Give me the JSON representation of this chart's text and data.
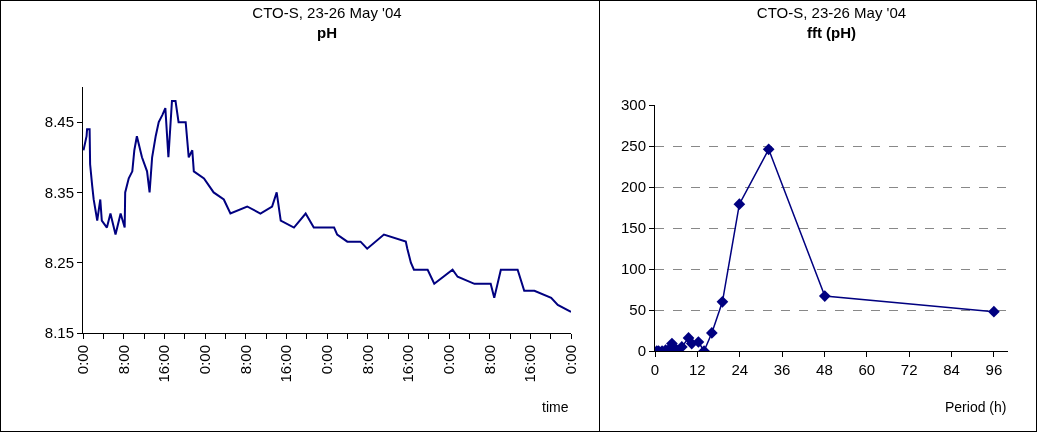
{
  "chart_data": [
    {
      "type": "line",
      "title": "CTO-S, 23-26 May '04",
      "subtitle": "pH",
      "xlabel": "time",
      "marker": "none",
      "line_style": "solid",
      "grid": false,
      "xlim": [
        "2004-05-23T00:00",
        "2004-05-27T00:00"
      ],
      "xticks": [
        {
          "value": "2004-05-23T00:00",
          "label": "0:00"
        },
        {
          "value": "2004-05-23T04:00",
          "label": null
        },
        {
          "value": "2004-05-23T08:00",
          "label": "8:00"
        },
        {
          "value": "2004-05-23T12:00",
          "label": null
        },
        {
          "value": "2004-05-23T16:00",
          "label": "16:00"
        },
        {
          "value": "2004-05-23T20:00",
          "label": null
        },
        {
          "value": "2004-05-24T00:00",
          "label": "0:00"
        },
        {
          "value": "2004-05-24T04:00",
          "label": null
        },
        {
          "value": "2004-05-24T08:00",
          "label": "8:00"
        },
        {
          "value": "2004-05-24T12:00",
          "label": null
        },
        {
          "value": "2004-05-24T16:00",
          "label": "16:00"
        },
        {
          "value": "2004-05-24T20:00",
          "label": null
        },
        {
          "value": "2004-05-25T00:00",
          "label": "0:00"
        },
        {
          "value": "2004-05-25T04:00",
          "label": null
        },
        {
          "value": "2004-05-25T08:00",
          "label": "8:00"
        },
        {
          "value": "2004-05-25T12:00",
          "label": null
        },
        {
          "value": "2004-05-25T16:00",
          "label": "16:00"
        },
        {
          "value": "2004-05-25T20:00",
          "label": null
        },
        {
          "value": "2004-05-26T00:00",
          "label": "0:00"
        },
        {
          "value": "2004-05-26T04:00",
          "label": null
        },
        {
          "value": "2004-05-26T08:00",
          "label": "8:00"
        },
        {
          "value": "2004-05-26T12:00",
          "label": null
        },
        {
          "value": "2004-05-26T16:00",
          "label": "16:00"
        },
        {
          "value": "2004-05-26T20:00",
          "label": null
        },
        {
          "value": "2004-05-27T00:00",
          "label": "0:00"
        }
      ],
      "ylim": [
        8.15,
        8.5
      ],
      "yticks": [
        8.15,
        8.25,
        8.35,
        8.45
      ],
      "series": [
        {
          "color": "#000080",
          "x": [
            "2004-05-23T00:06",
            "2004-05-23T00:42",
            "2004-05-23T00:48",
            "2004-05-23T01:18",
            "2004-05-23T01:24",
            "2004-05-23T01:48",
            "2004-05-23T02:06",
            "2004-05-23T02:48",
            "2004-05-23T03:24",
            "2004-05-23T03:42",
            "2004-05-23T04:42",
            "2004-05-23T05:24",
            "2004-05-23T06:24",
            "2004-05-23T07:24",
            "2004-05-23T08:12",
            "2004-05-23T08:18",
            "2004-05-23T09:00",
            "2004-05-23T09:42",
            "2004-05-23T10:06",
            "2004-05-23T10:36",
            "2004-05-23T11:36",
            "2004-05-23T12:36",
            "2004-05-23T13:06",
            "2004-05-23T13:36",
            "2004-05-23T14:18",
            "2004-05-23T14:54",
            "2004-05-23T15:36",
            "2004-05-23T16:12",
            "2004-05-23T16:48",
            "2004-05-23T17:30",
            "2004-05-23T18:12",
            "2004-05-23T18:48",
            "2004-05-23T20:12",
            "2004-05-23T20:48",
            "2004-05-23T21:30",
            "2004-05-23T21:48",
            "2004-05-23T23:48",
            "2004-05-24T01:42",
            "2004-05-24T03:42",
            "2004-05-24T05:00",
            "2004-05-24T08:18",
            "2004-05-24T10:54",
            "2004-05-24T13:12",
            "2004-05-24T14:06",
            "2004-05-24T14:54",
            "2004-05-24T17:30",
            "2004-05-24T19:48",
            "2004-05-24T21:24",
            "2004-05-25T00:06",
            "2004-05-25T01:24",
            "2004-05-25T02:00",
            "2004-05-25T04:00",
            "2004-05-25T06:36",
            "2004-05-25T07:54",
            "2004-05-25T11:12",
            "2004-05-25T15:30",
            "2004-05-25T15:48",
            "2004-05-25T16:30",
            "2004-05-25T17:06",
            "2004-05-25T19:48",
            "2004-05-25T21:06",
            "2004-05-26T00:42",
            "2004-05-26T01:42",
            "2004-05-26T05:00",
            "2004-05-26T08:12",
            "2004-05-26T08:54",
            "2004-05-26T10:12",
            "2004-05-26T13:30",
            "2004-05-26T14:48",
            "2004-05-26T16:48",
            "2004-05-26T20:06",
            "2004-05-26T21:24",
            "2004-05-27T00:00"
          ],
          "values": [
            8.41,
            8.43,
            8.44,
            8.44,
            8.39,
            8.36,
            8.34,
            8.31,
            8.34,
            8.31,
            8.3,
            8.32,
            8.29,
            8.32,
            8.3,
            8.35,
            8.37,
            8.38,
            8.41,
            8.43,
            8.4,
            8.38,
            8.35,
            8.4,
            8.43,
            8.45,
            8.46,
            8.47,
            8.4,
            8.48,
            8.48,
            8.45,
            8.45,
            8.4,
            8.41,
            8.38,
            8.37,
            8.35,
            8.34,
            8.32,
            8.33,
            8.32,
            8.33,
            8.35,
            8.31,
            8.3,
            8.32,
            8.3,
            8.3,
            8.3,
            8.29,
            8.28,
            8.28,
            8.27,
            8.29,
            8.28,
            8.27,
            8.25,
            8.24,
            8.24,
            8.22,
            8.24,
            8.23,
            8.22,
            8.22,
            8.2,
            8.24,
            8.24,
            8.21,
            8.21,
            8.2,
            8.19,
            8.18
          ]
        }
      ]
    },
    {
      "type": "line",
      "title": "CTO-S, 23-26 May '04",
      "subtitle": "fft (pH)",
      "xlabel": "Period (h)",
      "marker": "diamond",
      "line_style": "solid",
      "grid": "y",
      "xlim": [
        0,
        100
      ],
      "xticks": [
        0,
        12,
        24,
        36,
        48,
        60,
        72,
        84,
        96
      ],
      "ylim": [
        0,
        300
      ],
      "yticks": [
        0,
        50,
        100,
        150,
        200,
        250,
        300
      ],
      "series": [
        {
          "color": "#000080",
          "x": [
            0.5,
            1,
            2,
            3,
            4,
            4.4,
            4.8,
            5.3,
            6,
            6.4,
            7.6,
            9.5,
            10.4,
            12.3,
            13.9,
            16.1,
            19.1,
            23.9,
            32.2,
            48.1,
            96
          ],
          "values": [
            0,
            0,
            0,
            1,
            2,
            3,
            9,
            5,
            0,
            0,
            5,
            16,
            9,
            11,
            0,
            22,
            60,
            179,
            246,
            67,
            48
          ]
        }
      ]
    }
  ]
}
